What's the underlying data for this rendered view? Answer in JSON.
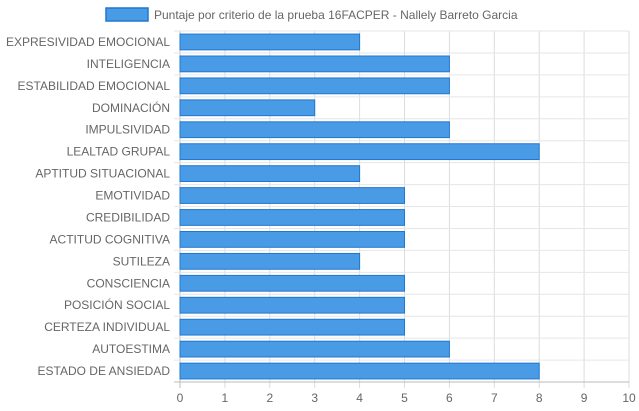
{
  "chart_data": {
    "type": "bar",
    "orientation": "horizontal",
    "legend": {
      "position": "top"
    },
    "series": [
      {
        "name": "Puntaje por criterio de la prueba 16FACPER - Nallely Barreto Garcia",
        "color": "#4a9be6",
        "border_color": "#1f78d1",
        "values": [
          4,
          6,
          6,
          3,
          6,
          8,
          4,
          5,
          5,
          5,
          4,
          5,
          5,
          5,
          6,
          8
        ]
      }
    ],
    "categories": [
      "EXPRESIVIDAD EMOCIONAL",
      "INTELIGENCIA",
      "ESTABILIDAD EMOCIONAL",
      "DOMINACIÓN",
      "IMPULSIVIDAD",
      "LEALTAD GRUPAL",
      "APTITUD SITUACIONAL",
      "EMOTIVIDAD",
      "CREDIBILIDAD",
      "ACTITUD COGNITIVA",
      "SUTILEZA",
      "CONSCIENCIA",
      "POSICIÓN SOCIAL",
      "CERTEZA INDIVIDUAL",
      "AUTOESTIMA",
      "ESTADO DE ANSIEDAD"
    ],
    "xlim": [
      0,
      10
    ],
    "xticks": [
      "0",
      "1",
      "2",
      "3",
      "4",
      "5",
      "6",
      "7",
      "8",
      "9",
      "10"
    ],
    "grid": true
  }
}
